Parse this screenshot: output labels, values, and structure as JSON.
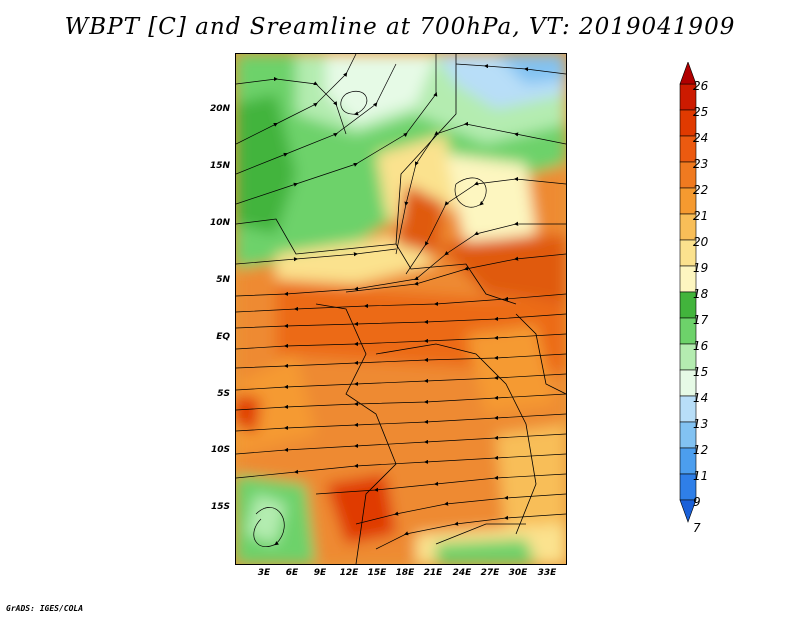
{
  "title": "WBPT [C] and Sreamline at 700hPa, VT: 2019041909",
  "credit": "GrADS: IGES/COLA",
  "axes": {
    "lat_labels": [
      "20N",
      "15N",
      "10N",
      "5N",
      "EQ",
      "5S",
      "10S",
      "15S"
    ],
    "lat_values": [
      20,
      15,
      10,
      5,
      0,
      -5,
      -10,
      -15
    ],
    "lon_labels": [
      "3E",
      "6E",
      "9E",
      "12E",
      "15E",
      "18E",
      "21E",
      "24E",
      "27E",
      "30E",
      "33E"
    ],
    "lon_values": [
      3,
      6,
      9,
      12,
      15,
      18,
      21,
      24,
      27,
      30,
      33
    ],
    "lon_range": [
      0,
      35
    ],
    "lat_range": [
      -20,
      24.5
    ]
  },
  "colorbar": {
    "levels": [
      "26",
      "25",
      "24",
      "23",
      "22",
      "21",
      "20",
      "19",
      "18",
      "17",
      "16",
      "15",
      "14",
      "13",
      "12",
      "11",
      "9",
      "7"
    ],
    "colors": [
      "#b00000",
      "#cc1a00",
      "#e03a00",
      "#ec5a10",
      "#f07a20",
      "#f59a30",
      "#f8be58",
      "#fbe28e",
      "#fdf6c0",
      "#42b43c",
      "#6dd26a",
      "#b4ecb0",
      "#e6fae6",
      "#b8def8",
      "#82c2f2",
      "#4c9eee",
      "#2f7fe8",
      "#1a60d8"
    ]
  },
  "legend_title": "WBPT [C]"
}
